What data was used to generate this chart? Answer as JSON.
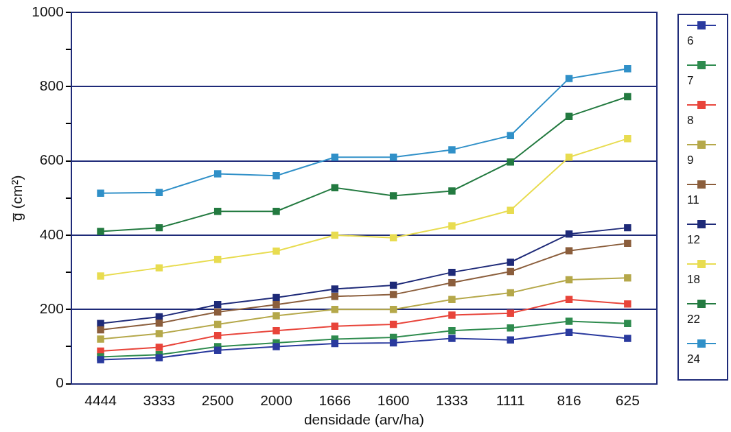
{
  "chart_data": {
    "type": "line",
    "xlabel": "densidade (arv/ha)",
    "ylabel": "g̅ (cm²)",
    "categories": [
      "4444",
      "3333",
      "2500",
      "2000",
      "1666",
      "1600",
      "1333",
      "1111",
      "816",
      "625"
    ],
    "ylim": [
      0,
      1000
    ],
    "yticks": [
      0,
      {
        "value": 100,
        "label": null
      },
      200,
      {
        "value": 300,
        "label": null
      },
      400,
      {
        "value": 500,
        "label": null
      },
      600,
      {
        "value": 700,
        "label": null
      },
      800,
      {
        "value": 900,
        "label": null
      },
      1000
    ],
    "grid": "y",
    "legend": "right",
    "marker": "square",
    "line_style": "solid",
    "series": [
      {
        "name": "6",
        "color": "#2a3a9e",
        "values": [
          65,
          70,
          90,
          100,
          108,
          110,
          122,
          118,
          138,
          122
        ]
      },
      {
        "name": "7",
        "color": "#2e8b4e",
        "values": [
          72,
          78,
          100,
          110,
          120,
          125,
          143,
          150,
          168,
          162
        ]
      },
      {
        "name": "8",
        "color": "#e8443a",
        "values": [
          88,
          98,
          130,
          143,
          155,
          160,
          185,
          190,
          227,
          215
        ]
      },
      {
        "name": "9",
        "color": "#b5a84a",
        "values": [
          120,
          135,
          160,
          183,
          200,
          200,
          227,
          245,
          280,
          285
        ]
      },
      {
        "name": "11",
        "color": "#8b5e3c",
        "values": [
          145,
          163,
          193,
          213,
          235,
          240,
          272,
          302,
          358,
          378
        ]
      },
      {
        "name": "12",
        "color": "#1e2a78",
        "values": [
          162,
          180,
          213,
          232,
          255,
          265,
          300,
          327,
          403,
          420
        ]
      },
      {
        "name": "18",
        "color": "#e8dc50",
        "values": [
          290,
          312,
          335,
          357,
          400,
          393,
          425,
          467,
          610,
          660
        ]
      },
      {
        "name": "22",
        "color": "#237a40",
        "values": [
          410,
          420,
          464,
          464,
          528,
          506,
          519,
          597,
          720,
          773
        ]
      },
      {
        "name": "24",
        "color": "#3090c8",
        "values": [
          513,
          515,
          565,
          560,
          610,
          610,
          630,
          668,
          822,
          848
        ]
      }
    ]
  }
}
